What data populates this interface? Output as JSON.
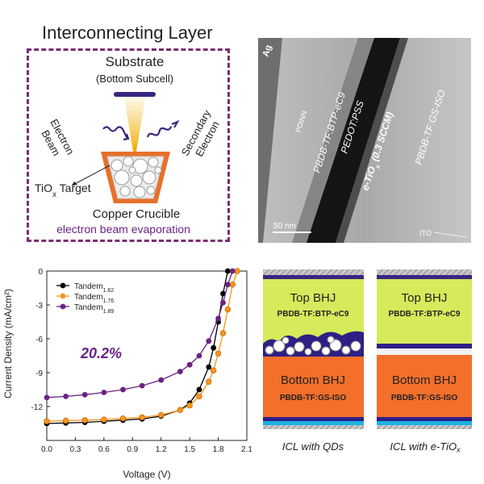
{
  "icl": {
    "title": "Interconnecting Layer",
    "substrate": "Substrate",
    "bottom_subcell": "(Bottom Subcell)",
    "electron": "Electron",
    "beam": "Beam",
    "secondary": "Secondary",
    "secondary_electron": "Electron",
    "target_prefix": "TiO",
    "target_sub": "x",
    "target_suffix": " Target",
    "crucible": "Copper Crucible",
    "method": "electron beam evaporation"
  },
  "tem": {
    "labels": {
      "ag": "Ag",
      "pdinn": "PDINN",
      "top_layer": "PBDB-TF:BTP-eC9",
      "pedot": "PEDOT:PSS",
      "etiox_prefix": "e-TiO",
      "etiox_sub": "x",
      "etiox_suffix": " (0.3 SCCM)",
      "bottom_layer": "PBDB-TF:GS-ISO",
      "ito": "ITO",
      "scale": "50 nm"
    }
  },
  "chart_data": {
    "type": "line",
    "xlabel": "Voltage (V)",
    "ylabel": "Current Density (mA/cm²)",
    "xlim": [
      0,
      2.1
    ],
    "ylim": [
      -15,
      0
    ],
    "xticks": [
      "0.0",
      "0.3",
      "0.6",
      "0.9",
      "1.2",
      "1.5",
      "1.8",
      "2.1"
    ],
    "yticks": [
      "0",
      "-3",
      "-6",
      "-9",
      "-12"
    ],
    "annotation": "20.2%",
    "legend_position": "top-left",
    "series": [
      {
        "name": "Tandem",
        "sub": "1.62",
        "color": "#000000",
        "x": [
          0.0,
          0.2,
          0.4,
          0.6,
          0.8,
          1.0,
          1.2,
          1.4,
          1.5,
          1.6,
          1.7,
          1.75,
          1.8,
          1.85,
          1.9
        ],
        "y": [
          -13.5,
          -13.45,
          -13.4,
          -13.3,
          -13.2,
          -13.1,
          -12.85,
          -12.3,
          -11.7,
          -10.5,
          -8.5,
          -6.8,
          -4.5,
          -2.0,
          0.0
        ]
      },
      {
        "name": "Tandem",
        "sub": "1.76",
        "color": "#f7941d",
        "x": [
          0.0,
          0.2,
          0.4,
          0.6,
          0.8,
          1.0,
          1.2,
          1.4,
          1.5,
          1.6,
          1.7,
          1.75,
          1.8,
          1.85,
          1.9,
          1.95,
          2.0
        ],
        "y": [
          -13.3,
          -13.25,
          -13.2,
          -13.15,
          -13.05,
          -12.95,
          -12.75,
          -12.3,
          -11.9,
          -11.1,
          -9.8,
          -8.8,
          -7.3,
          -5.5,
          -3.4,
          -1.2,
          0.0
        ]
      },
      {
        "name": "Tandem",
        "sub": "1.89",
        "color": "#6a2283",
        "x": [
          0.0,
          0.2,
          0.4,
          0.6,
          0.8,
          1.0,
          1.2,
          1.4,
          1.5,
          1.6,
          1.7,
          1.8,
          1.85,
          1.9,
          1.95
        ],
        "y": [
          -11.2,
          -11.1,
          -10.95,
          -10.75,
          -10.5,
          -10.15,
          -9.65,
          -8.9,
          -8.3,
          -7.5,
          -6.2,
          -4.2,
          -2.8,
          -1.2,
          0.0
        ]
      }
    ]
  },
  "stacks": {
    "left": {
      "top_title": "Top BHJ",
      "top_material": "PBDB-TF:BTP-eC9",
      "bottom_title": "Bottom BHJ",
      "bottom_material": "PBDB-TF:GS-ISO",
      "caption": "ICL with QDs"
    },
    "right": {
      "top_title": "Top BHJ",
      "top_material": "PBDB-TF:BTP-eC9",
      "bottom_title": "Bottom BHJ",
      "bottom_material": "PBDB-TF:GS-ISO",
      "caption_prefix": "ICL with e-TiO",
      "caption_sub": "x"
    }
  },
  "colors": {
    "purple": "#6a2283",
    "dashed_border": "#7b2d72",
    "orange": "#f36f2a",
    "lime": "#d6ea5b",
    "navy": "#2d1f86",
    "beam": "#f7c948",
    "cyan": "#1bb1e3"
  }
}
